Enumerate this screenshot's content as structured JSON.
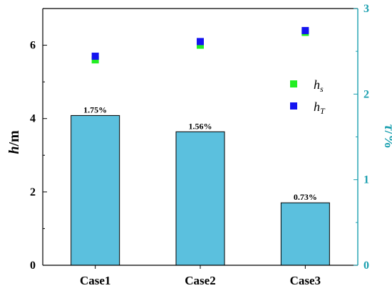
{
  "chart_data": {
    "type": "bar",
    "categories": [
      "Case1",
      "Case2",
      "Case3"
    ],
    "bars": {
      "axis": "right",
      "values": [
        1.75,
        1.56,
        0.73
      ],
      "labels": [
        "1.75%",
        "1.56%",
        "0.73%"
      ],
      "color": "#5BC0DE"
    },
    "scatter_series": [
      {
        "name": "h_s",
        "axis": "left",
        "values": [
          5.6,
          6.0,
          6.35
        ],
        "color": "#22EE22"
      },
      {
        "name": "h_T",
        "axis": "left",
        "values": [
          5.7,
          6.1,
          6.4
        ],
        "color": "#1414F0"
      }
    ],
    "y_left": {
      "label_main": "h",
      "label_unit": "/m",
      "ylim": [
        0,
        7
      ],
      "ticks": [
        "0",
        "2",
        "4",
        "6"
      ]
    },
    "y_right": {
      "label_main": "τ",
      "label_unit": "/%",
      "ylim": [
        0,
        3
      ],
      "ticks": [
        "0",
        "1",
        "2",
        "3"
      ],
      "color": "#1A9FAF"
    },
    "legend": {
      "placement": "top-right",
      "entries": [
        {
          "main": "h",
          "sub": "s",
          "color": "#22EE22"
        },
        {
          "main": "h",
          "sub": "T",
          "color": "#1414F0"
        }
      ]
    },
    "grid": false
  }
}
